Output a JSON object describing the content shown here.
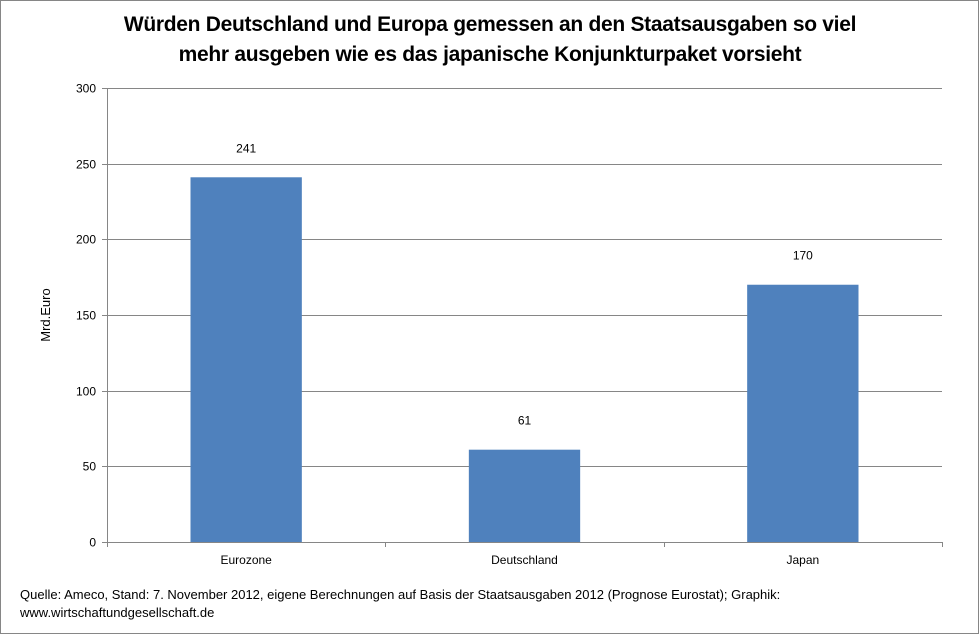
{
  "chart_data": {
    "type": "bar",
    "title": "Würden Deutschland und Europa gemessen an den Staatsausgaben so viel mehr ausgeben wie es das japanische Konjunkturpaket vorsieht",
    "title_lines": [
      "Würden Deutschland und Europa gemessen an den Staatsausgaben so viel",
      "mehr ausgeben wie es das japanische Konjunkturpaket vorsieht"
    ],
    "categories": [
      "Eurozone",
      "Deutschland",
      "Japan"
    ],
    "values": [
      241,
      61,
      170
    ],
    "data_labels": [
      "241",
      "61",
      "170"
    ],
    "xlabel": "",
    "ylabel": "Mrd.Euro",
    "ylim": [
      0,
      300
    ],
    "yticks": [
      0,
      50,
      100,
      150,
      200,
      250,
      300
    ],
    "grid": true,
    "legend": "none",
    "bar_color": "#4F81BD",
    "gridline_color": "#868686"
  },
  "source": {
    "line1": "Quelle: Ameco, Stand: 7. November 2012, eigene Berechnungen auf Basis der Staatsausgaben 2012 (Prognose Eurostat); Graphik:",
    "line2": "www.wirtschaftundgesellschaft.de"
  }
}
